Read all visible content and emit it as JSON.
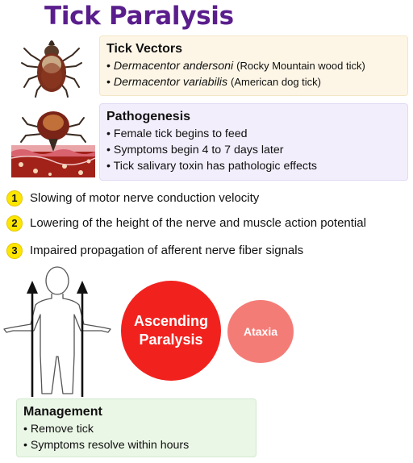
{
  "title": "Tick Paralysis",
  "vectors": {
    "heading": "Tick Vectors",
    "items": [
      {
        "species": "Dermacentor andersoni",
        "common": "(Rocky Mountain wood tick)"
      },
      {
        "species": "Dermacentor variabilis",
        "common": "(American dog tick)"
      }
    ]
  },
  "pathogenesis": {
    "heading": "Pathogenesis",
    "items": [
      "Female tick begins to feed",
      "Symptoms begin 4 to 7 days later",
      "Tick salivary toxin has pathologic effects"
    ]
  },
  "effects": [
    {
      "num": "1",
      "text": "Slowing of motor nerve conduction velocity"
    },
    {
      "num": "2",
      "text": "Lowering of the height of the nerve and muscle action potential"
    },
    {
      "num": "3",
      "text": "Impaired propagation of afferent nerve fiber signals"
    }
  ],
  "circles": {
    "ascending_line1": "Ascending",
    "ascending_line2": "Paralysis",
    "ataxia": "Ataxia"
  },
  "management": {
    "heading": "Management",
    "items": [
      "Remove tick",
      "Symptoms resolve within hours"
    ]
  },
  "colors": {
    "title": "#5a1e8c",
    "number_badge": "#ffe600",
    "ascending": "#f1221e",
    "ataxia": "#f47c77"
  }
}
